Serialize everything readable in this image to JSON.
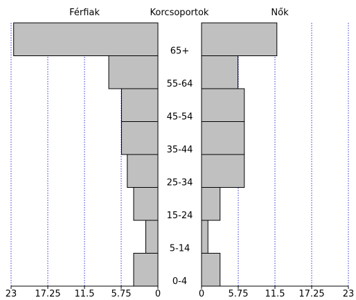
{
  "chart_data": {
    "type": "bar",
    "orientation": "horizontal-population-pyramid",
    "header_left": "Férfiak",
    "header_center": "Korcsoportok",
    "header_right": "Nők",
    "categories": [
      "0-4",
      "5-14",
      "15-24",
      "25-34",
      "35-44",
      "45-54",
      "55-64",
      "65+"
    ],
    "series": [
      {
        "name": "Férfiak",
        "side": "left",
        "values": [
          3.8,
          1.9,
          3.8,
          4.8,
          5.7,
          5.7,
          7.7,
          22.6
        ]
      },
      {
        "name": "Nők",
        "side": "right",
        "values": [
          2.9,
          1.0,
          2.9,
          6.7,
          6.7,
          6.7,
          5.7,
          11.8
        ]
      }
    ],
    "xlim": [
      0,
      23
    ],
    "ticks_left": [
      "23",
      "17.25",
      "11.5",
      "5.75",
      "0"
    ],
    "ticks_right": [
      "0",
      "5.75",
      "11.5",
      "17.25",
      "23"
    ],
    "tick_values": [
      0,
      5.75,
      11.5,
      17.25,
      23
    ],
    "grid": true,
    "colors": {
      "bar_fill": "#c0c0c0",
      "bar_stroke": "#000000",
      "grid": "#3030d0"
    }
  }
}
